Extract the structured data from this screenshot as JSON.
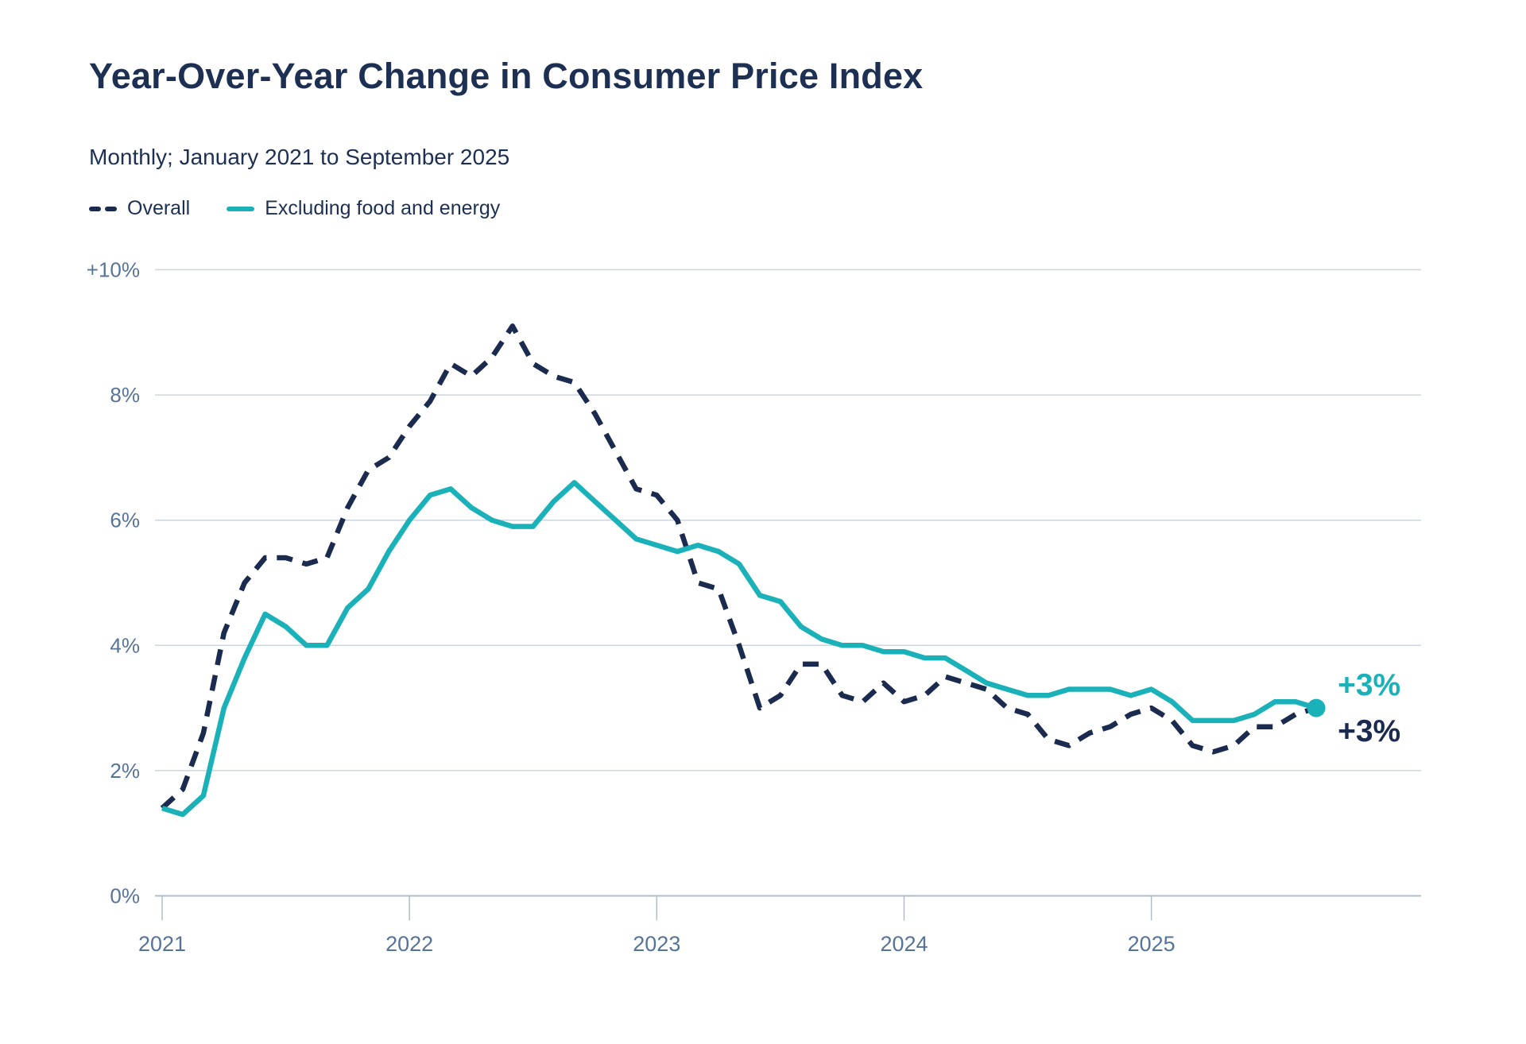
{
  "header": {
    "title": "Year-Over-Year Change in Consumer Price Index",
    "subtitle": "Monthly; January 2021 to September 2025"
  },
  "legend": {
    "overall_label": "Overall",
    "core_label": "Excluding food and energy"
  },
  "colors": {
    "background": "#FFFFFF",
    "navy": "#1B2B4F",
    "teal": "#1BB1B9",
    "title_text": "#1D3054",
    "axis_text": "#56749A",
    "gridline": "#CCD6E0",
    "axis_line": "#AFBDCD"
  },
  "chart_data": {
    "type": "line",
    "title": "Year-Over-Year Change in Consumer Price Index",
    "subtitle": "Monthly; January 2021 to September 2025",
    "frequency": "monthly",
    "x_start": "2021-01",
    "x_end": "2025-09",
    "months": [
      "2021-01",
      "2021-02",
      "2021-03",
      "2021-04",
      "2021-05",
      "2021-06",
      "2021-07",
      "2021-08",
      "2021-09",
      "2021-10",
      "2021-11",
      "2021-12",
      "2022-01",
      "2022-02",
      "2022-03",
      "2022-04",
      "2022-05",
      "2022-06",
      "2022-07",
      "2022-08",
      "2022-09",
      "2022-10",
      "2022-11",
      "2022-12",
      "2023-01",
      "2023-02",
      "2023-03",
      "2023-04",
      "2023-05",
      "2023-06",
      "2023-07",
      "2023-08",
      "2023-09",
      "2023-10",
      "2023-11",
      "2023-12",
      "2024-01",
      "2024-02",
      "2024-03",
      "2024-04",
      "2024-05",
      "2024-06",
      "2024-07",
      "2024-08",
      "2024-09",
      "2024-10",
      "2024-11",
      "2024-12",
      "2025-01",
      "2025-02",
      "2025-03",
      "2025-04",
      "2025-05",
      "2025-06",
      "2025-07",
      "2025-08",
      "2025-09"
    ],
    "series": [
      {
        "name": "Overall",
        "color": "#1B2B4F",
        "dashed": true,
        "values": [
          1.4,
          1.7,
          2.6,
          4.2,
          5.0,
          5.4,
          5.4,
          5.3,
          5.4,
          6.2,
          6.8,
          7.0,
          7.5,
          7.9,
          8.5,
          8.3,
          8.6,
          9.1,
          8.5,
          8.3,
          8.2,
          7.7,
          7.1,
          6.5,
          6.4,
          6.0,
          5.0,
          4.9,
          4.0,
          3.0,
          3.2,
          3.7,
          3.7,
          3.2,
          3.1,
          3.4,
          3.1,
          3.2,
          3.5,
          3.4,
          3.3,
          3.0,
          2.9,
          2.5,
          2.4,
          2.6,
          2.7,
          2.9,
          3.0,
          2.8,
          2.4,
          2.3,
          2.4,
          2.7,
          2.7,
          2.9,
          3.0
        ]
      },
      {
        "name": "Excluding food and energy",
        "color": "#1BB1B9",
        "dashed": false,
        "values": [
          1.4,
          1.3,
          1.6,
          3.0,
          3.8,
          4.5,
          4.3,
          4.0,
          4.0,
          4.6,
          4.9,
          5.5,
          6.0,
          6.4,
          6.5,
          6.2,
          6.0,
          5.9,
          5.9,
          6.3,
          6.6,
          6.3,
          6.0,
          5.7,
          5.6,
          5.5,
          5.6,
          5.5,
          5.3,
          4.8,
          4.7,
          4.3,
          4.1,
          4.0,
          4.0,
          3.9,
          3.9,
          3.8,
          3.8,
          3.6,
          3.4,
          3.3,
          3.2,
          3.2,
          3.3,
          3.3,
          3.3,
          3.2,
          3.3,
          3.1,
          2.8,
          2.8,
          2.8,
          2.9,
          3.1,
          3.1,
          3.0
        ]
      }
    ],
    "ylim": [
      0,
      10
    ],
    "y_ticks": [
      {
        "value": 10,
        "label": "+10%"
      },
      {
        "value": 8,
        "label": "8%"
      },
      {
        "value": 6,
        "label": "6%"
      },
      {
        "value": 4,
        "label": "4%"
      },
      {
        "value": 2,
        "label": "2%"
      },
      {
        "value": 0,
        "label": "0%"
      }
    ],
    "x_ticks": [
      {
        "month_index": 0,
        "label": "2021"
      },
      {
        "month_index": 12,
        "label": "2022"
      },
      {
        "month_index": 24,
        "label": "2023"
      },
      {
        "month_index": 36,
        "label": "2024"
      },
      {
        "month_index": 48,
        "label": "2025"
      }
    ],
    "grid": true,
    "legend_position": "top-left",
    "end_labels": [
      {
        "series": "Excluding food and energy",
        "text": "+3%",
        "color": "#1BB1B9"
      },
      {
        "series": "Overall",
        "text": "+3%",
        "color": "#1B2B4F"
      }
    ],
    "end_marker": {
      "series": "Excluding food and energy",
      "shape": "dot",
      "color": "#1BB1B9"
    }
  }
}
